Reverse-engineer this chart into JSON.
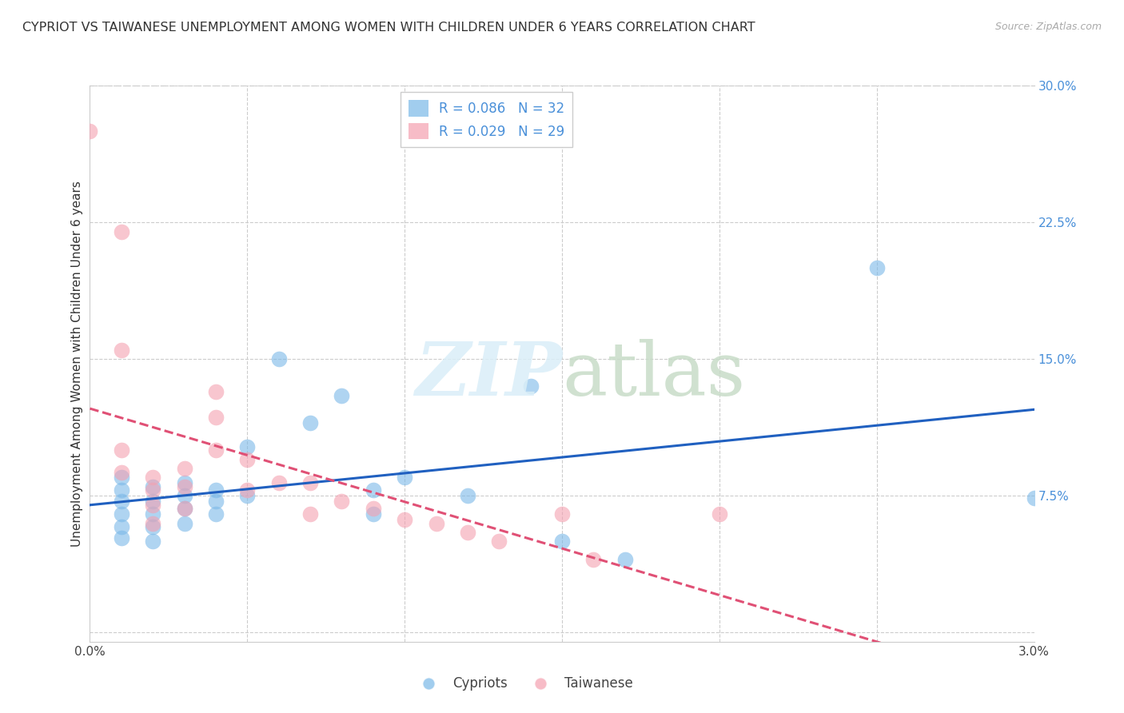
{
  "title": "CYPRIOT VS TAIWANESE UNEMPLOYMENT AMONG WOMEN WITH CHILDREN UNDER 6 YEARS CORRELATION CHART",
  "source": "Source: ZipAtlas.com",
  "ylabel": "Unemployment Among Women with Children Under 6 years",
  "xlim": [
    0.0,
    0.03
  ],
  "ylim": [
    -0.005,
    0.3
  ],
  "xticks": [
    0.0,
    0.005,
    0.01,
    0.015,
    0.02,
    0.025,
    0.03
  ],
  "xticklabels": [
    "0.0%",
    "",
    "",
    "",
    "",
    "",
    "3.0%"
  ],
  "yticks_right": [
    0.0,
    0.075,
    0.15,
    0.225,
    0.3
  ],
  "yticklabels_right": [
    "",
    "7.5%",
    "15.0%",
    "22.5%",
    "30.0%"
  ],
  "cypriot_color": "#7ab8e8",
  "taiwanese_color": "#f4a0b0",
  "legend_label_blue": "R = 0.086   N = 32",
  "legend_label_pink": "R = 0.029   N = 29",
  "background_color": "#ffffff",
  "blue_trend_color": "#2060c0",
  "pink_trend_color": "#e05075",
  "cypriot_x": [
    0.001,
    0.001,
    0.001,
    0.001,
    0.001,
    0.001,
    0.002,
    0.002,
    0.002,
    0.002,
    0.002,
    0.003,
    0.003,
    0.003,
    0.003,
    0.004,
    0.004,
    0.004,
    0.005,
    0.005,
    0.006,
    0.007,
    0.008,
    0.009,
    0.009,
    0.01,
    0.012,
    0.014,
    0.015,
    0.017,
    0.025,
    0.03
  ],
  "cypriot_y": [
    0.085,
    0.078,
    0.072,
    0.065,
    0.058,
    0.052,
    0.08,
    0.072,
    0.065,
    0.058,
    0.05,
    0.082,
    0.075,
    0.068,
    0.06,
    0.078,
    0.072,
    0.065,
    0.102,
    0.075,
    0.15,
    0.115,
    0.13,
    0.078,
    0.065,
    0.085,
    0.075,
    0.135,
    0.05,
    0.04,
    0.2,
    0.074
  ],
  "taiwanese_x": [
    0.0,
    0.001,
    0.001,
    0.001,
    0.002,
    0.002,
    0.002,
    0.002,
    0.003,
    0.003,
    0.003,
    0.004,
    0.004,
    0.004,
    0.005,
    0.005,
    0.006,
    0.007,
    0.007,
    0.008,
    0.009,
    0.01,
    0.011,
    0.012,
    0.013,
    0.015,
    0.016,
    0.02,
    0.001
  ],
  "taiwanese_y": [
    0.275,
    0.155,
    0.1,
    0.088,
    0.085,
    0.078,
    0.07,
    0.06,
    0.09,
    0.08,
    0.068,
    0.132,
    0.118,
    0.1,
    0.095,
    0.078,
    0.082,
    0.082,
    0.065,
    0.072,
    0.068,
    0.062,
    0.06,
    0.055,
    0.05,
    0.065,
    0.04,
    0.065,
    0.22
  ]
}
